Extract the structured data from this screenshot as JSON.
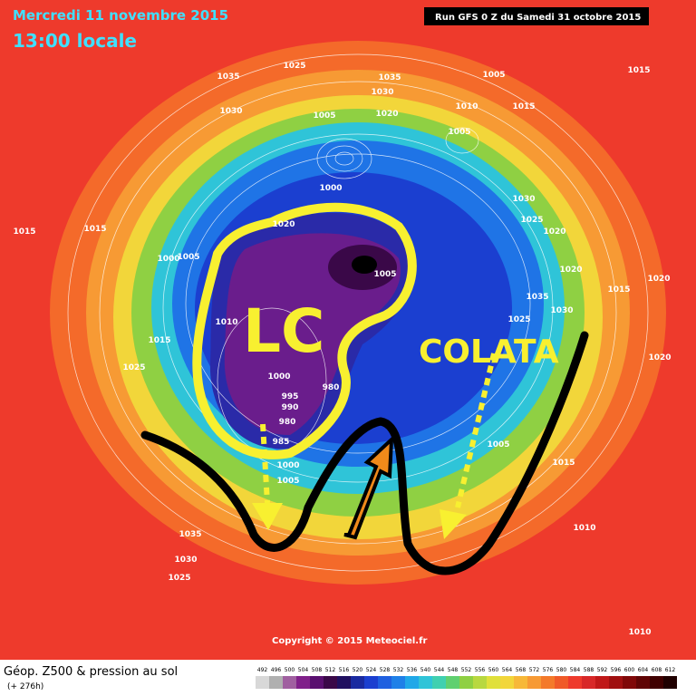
{
  "header": {
    "date": "Mercredi 11 novembre 2015",
    "time": "13:00 locale",
    "run": "Run GFS 0 Z du Samedi 31 octobre 2015"
  },
  "annotations": {
    "low": "LC",
    "flow": "COLATA"
  },
  "pressure_labels": [
    "1025",
    "1035",
    "1035",
    "1030",
    "1005",
    "1015",
    "1030",
    "1020",
    "1010",
    "1015",
    "1005",
    "1005",
    "1000",
    "1030",
    "1015",
    "1015",
    "1020",
    "1025",
    "1020",
    "1000",
    "1005",
    "1005",
    "1020",
    "1015",
    "1020",
    "1035",
    "1030",
    "1010",
    "1025",
    "1015",
    "1025",
    "1020",
    "1000",
    "995",
    "990",
    "980",
    "980",
    "985",
    "1000",
    "1005",
    "1005",
    "1015",
    "1035",
    "1030",
    "1025",
    "1010",
    "1010"
  ],
  "copyright": "Copyright © 2015 Meteociel.fr",
  "footer": {
    "title": "Géop. Z500 & pression au sol",
    "lead": "(+ 276h)"
  },
  "colorbar": {
    "ticks": [
      492,
      496,
      500,
      504,
      508,
      512,
      516,
      520,
      524,
      528,
      532,
      536,
      540,
      544,
      548,
      552,
      556,
      560,
      564,
      568,
      572,
      576,
      580,
      584,
      588,
      592,
      596,
      600,
      604,
      608,
      612
    ]
  }
}
